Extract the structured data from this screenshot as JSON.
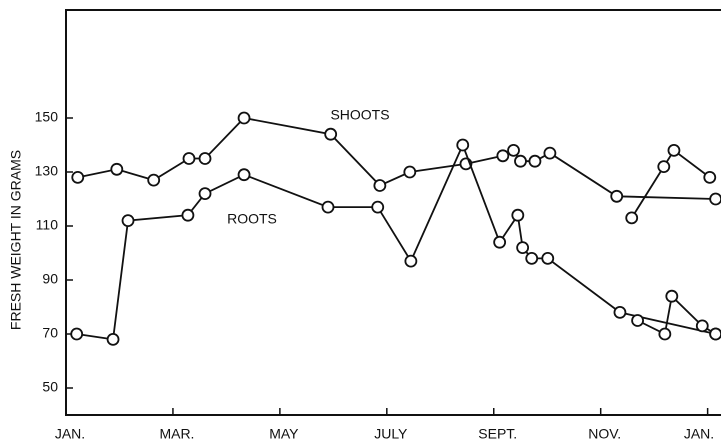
{
  "chart_data": {
    "type": "line",
    "y_label": "FRESH WEIGHT IN GRAMS",
    "xlim": [
      0,
      12.25
    ],
    "xticks": [
      {
        "value": 0,
        "label": "JAN."
      },
      {
        "value": 2,
        "label": "MAR."
      },
      {
        "value": 4,
        "label": "MAY"
      },
      {
        "value": 6,
        "label": "JULY"
      },
      {
        "value": 8,
        "label": "SEPT."
      },
      {
        "value": 10,
        "label": "NOV."
      },
      {
        "value": 12,
        "label": "JAN."
      }
    ],
    "ylim": [
      40,
      190
    ],
    "yticks": [
      50,
      70,
      90,
      110,
      130,
      150
    ],
    "grid": false,
    "series": [
      {
        "name": "SHOOTS",
        "color": "#111111",
        "x": [
          0.22,
          0.95,
          1.64,
          2.3,
          2.6,
          3.33,
          4.95,
          5.87,
          6.43,
          7.48,
          8.17,
          8.37,
          8.5,
          8.77,
          9.05,
          10.3,
          12.15,
          null,
          10.58,
          11.18,
          11.37,
          12.04
        ],
        "values": [
          128,
          131,
          127,
          135,
          135,
          150,
          144,
          125,
          130,
          133,
          136,
          138,
          134,
          134,
          137,
          121,
          120,
          null,
          113,
          132,
          138,
          128
        ]
      },
      {
        "name": "ROOTS",
        "color": "#111111",
        "x": [
          0.2,
          0.88,
          1.16,
          2.28,
          2.6,
          3.33,
          4.9,
          5.83,
          6.45,
          7.42,
          8.11,
          8.45,
          8.54,
          8.71,
          9.01,
          10.36,
          12.15,
          null,
          10.69,
          11.2,
          11.33,
          11.9,
          12.15
        ],
        "values": [
          70,
          68,
          112,
          114,
          122,
          129,
          117,
          117,
          97,
          140,
          104,
          114,
          102,
          98,
          98,
          78,
          70,
          null,
          75,
          70,
          84,
          73,
          70
        ]
      }
    ]
  }
}
